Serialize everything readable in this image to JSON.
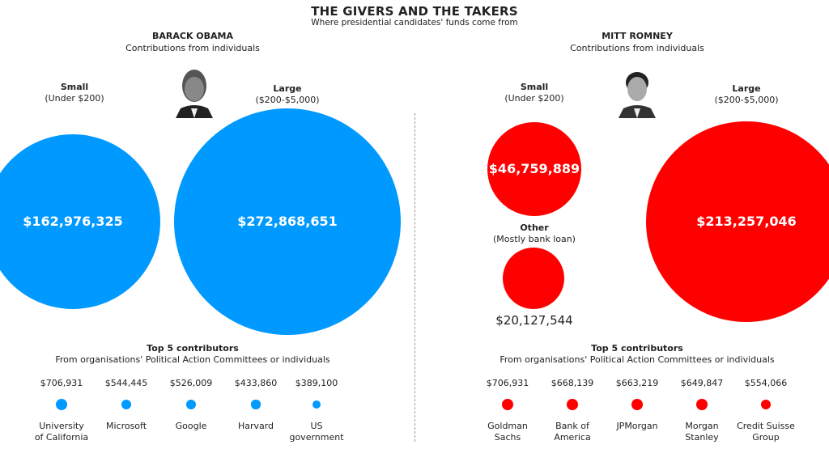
{
  "title": "THE GIVERS AND THE TAKERS",
  "subtitle": "Where presidential candidates' funds come from",
  "colors": {
    "obama": "#0099ff",
    "romney": "#ff0000"
  },
  "chart_data": [
    {
      "type": "bubble",
      "candidate": "BARACK OBAMA",
      "subtitle": "Contributions from individuals",
      "bubbles": [
        {
          "label": "Small",
          "sublabel": "(Under $200)",
          "value": 162976325,
          "display": "$162,976,325"
        },
        {
          "label": "Large",
          "sublabel": "($200-$5,000)",
          "value": 272868651,
          "display": "$272,868,651"
        }
      ],
      "contributors_title": "Top 5 contributors",
      "contributors_subtitle": "From organisations' Political Action Committees or individuals",
      "contributors": [
        {
          "name": "University\nof California",
          "value": 706931,
          "display": "$706,931"
        },
        {
          "name": "Microsoft",
          "value": 544445,
          "display": "$544,445"
        },
        {
          "name": "Google",
          "value": 526009,
          "display": "$526,009"
        },
        {
          "name": "Harvard",
          "value": 433860,
          "display": "$433,860"
        },
        {
          "name": "US\ngovernment",
          "value": 389100,
          "display": "$389,100"
        }
      ]
    },
    {
      "type": "bubble",
      "candidate": "MITT ROMNEY",
      "subtitle": "Contributions from individuals",
      "bubbles": [
        {
          "label": "Small",
          "sublabel": "(Under $200)",
          "value": 46759889,
          "display": "$46,759,889"
        },
        {
          "label": "Other",
          "sublabel": "(Mostly bank loan)",
          "value": 20127544,
          "display": "$20,127,544"
        },
        {
          "label": "Large",
          "sublabel": "($200-$5,000)",
          "value": 213257046,
          "display": "$213,257,046"
        }
      ],
      "contributors_title": "Top 5 contributors",
      "contributors_subtitle": "From organisations' Political Action Committees or individuals",
      "contributors": [
        {
          "name": "Goldman\nSachs",
          "value": 706931,
          "display": "$706,931"
        },
        {
          "name": "Bank of\nAmerica",
          "value": 668139,
          "display": "$668,139"
        },
        {
          "name": "JPMorgan",
          "value": 663219,
          "display": "$663,219"
        },
        {
          "name": "Morgan\nStanley",
          "value": 649847,
          "display": "$649,847"
        },
        {
          "name": "Credit Suisse\nGroup",
          "value": 554066,
          "display": "$554,066"
        }
      ]
    }
  ]
}
